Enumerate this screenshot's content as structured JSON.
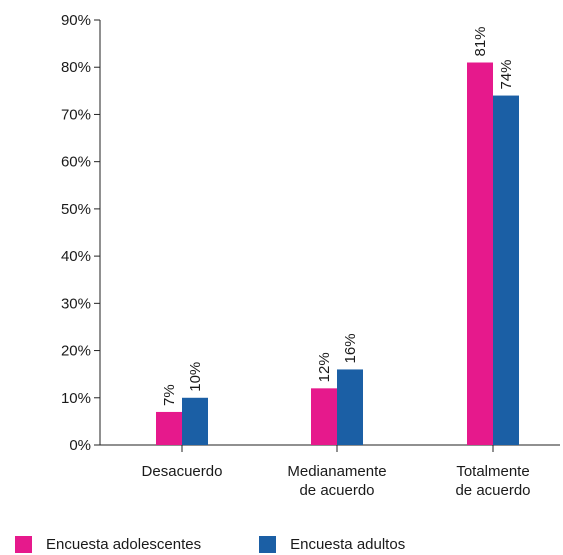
{
  "chart_data": {
    "type": "bar",
    "categories": [
      [
        "Desacuerdo"
      ],
      [
        "Medianamente",
        "de acuerdo"
      ],
      [
        "Totalmente",
        "de acuerdo"
      ]
    ],
    "series": [
      {
        "name": "Encuesta adolescentes",
        "color": "#e6198c",
        "values": [
          7,
          12,
          81
        ],
        "labels": [
          "7%",
          "12%",
          "81%"
        ]
      },
      {
        "name": "Encuesta adultos",
        "color": "#1b5fa5",
        "values": [
          10,
          16,
          74
        ],
        "labels": [
          "10%",
          "16%",
          "74%"
        ]
      }
    ],
    "yticks": [
      0,
      10,
      20,
      30,
      40,
      50,
      60,
      70,
      80,
      90
    ],
    "ytick_labels": [
      "0%",
      "10%",
      "20%",
      "30%",
      "40%",
      "50%",
      "60%",
      "70%",
      "80%",
      "90%"
    ],
    "ylim": [
      0,
      90
    ],
    "grid": false,
    "legend_position": "bottom-left"
  }
}
